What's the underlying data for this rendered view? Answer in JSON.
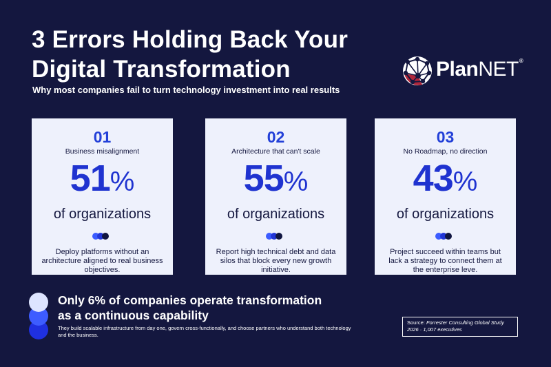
{
  "title_lines": [
    "3 Errors Holding Back Your",
    "Digital Transformation"
  ],
  "subtitle": "Why most companies fail to turn technology investment into real results",
  "logo": {
    "text_plan": "Plan",
    "text_net": "NET",
    "reg": "®",
    "icon": "globe-network-icon"
  },
  "cards": [
    {
      "number": "01",
      "heading": "Business misalignment",
      "value": "51",
      "unit": "%",
      "of": "of organizations",
      "desc": "Deploy platforms without an architecture aligned to real business objectives."
    },
    {
      "number": "02",
      "heading": "Architecture that can't scale",
      "value": "55",
      "unit": "%",
      "of": "of organizations",
      "desc": "Report high technical debt and data silos that block every new growth initiative."
    },
    {
      "number": "03",
      "heading": "No Roadmap, no direction",
      "value": "43",
      "unit": "%",
      "of": "of organizations",
      "desc": "Project succeed within teams but lack a strategy to connect them at the enterprise leve."
    }
  ],
  "headline_lines": [
    "Only 6% of companies operate transformation",
    "as a continuous capability"
  ],
  "footer_text": "They build scalable infrastructure from day one, govern cross-functionally, and choose partners who understand both technology and the business.",
  "source": {
    "label": "Source:",
    "study": "Forrester Consulting Global Study",
    "detail": "2026 · 1,007 executives"
  },
  "colors": {
    "background": "#14173f",
    "card": "#eef1fc",
    "accent": "#2340d8",
    "logo_red": "#b0263a"
  }
}
